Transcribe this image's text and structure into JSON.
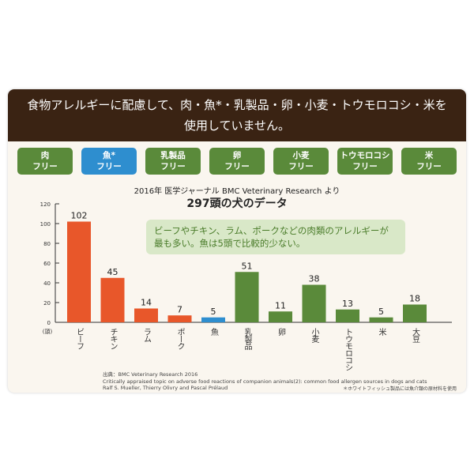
{
  "header": {
    "line1": "食物アレルギーに配慮して、肉・魚*・乳製品・卵・小麦・トウモロコシ・米を",
    "line2": "使用していません。"
  },
  "badges": [
    {
      "name": "肉",
      "free": "フリー",
      "color": "#5a8a3a"
    },
    {
      "name": "魚*",
      "free": "フリー",
      "color": "#2e8ecf"
    },
    {
      "name": "乳製品",
      "free": "フリー",
      "color": "#5a8a3a"
    },
    {
      "name": "卵",
      "free": "フリー",
      "color": "#5a8a3a"
    },
    {
      "name": "小麦",
      "free": "フリー",
      "color": "#5a8a3a"
    },
    {
      "name": "トウモロコシ",
      "free": "フリー",
      "color": "#5a8a3a"
    },
    {
      "name": "米",
      "free": "フリー",
      "color": "#5a8a3a"
    }
  ],
  "callout": "ビーフやチキン、ラム、ポークなどの肉類のアレルギーが最も多い。魚は5頭で比較的少ない。",
  "chart_data": {
    "type": "bar",
    "subtitle": "2016年 医学ジャーナル BMC Veterinary Research より",
    "title": "297頭の犬のデータ",
    "ylabel": "(頭)",
    "ylim": [
      0,
      120
    ],
    "yticks": [
      0,
      20,
      40,
      60,
      80,
      100,
      120
    ],
    "categories": [
      "ビーフ",
      "チキン",
      "ラム",
      "ポーク",
      "魚",
      "乳製品",
      "卵",
      "小麦",
      "トウモロコシ",
      "米",
      "大豆"
    ],
    "values": [
      102,
      45,
      14,
      7,
      5,
      51,
      11,
      38,
      13,
      5,
      18
    ],
    "colors": [
      "#e8572a",
      "#e8572a",
      "#e8572a",
      "#e8572a",
      "#2e8ecf",
      "#5a8a3a",
      "#5a8a3a",
      "#5a8a3a",
      "#5a8a3a",
      "#5a8a3a",
      "#5a8a3a"
    ],
    "grid": false
  },
  "source": {
    "line1": "出典：BMC Veterinary Research 2016",
    "line2": "Critically appraised topic on adverse food reactions of companion animals(2): common food allergen sources in dogs and cats",
    "line3": "Ralf S. Mueller, Thierry Olivry and Pascal Prélaud"
  },
  "footnote": "＊ホワイトフィッシュ製品には魚介類の原材料を使用"
}
